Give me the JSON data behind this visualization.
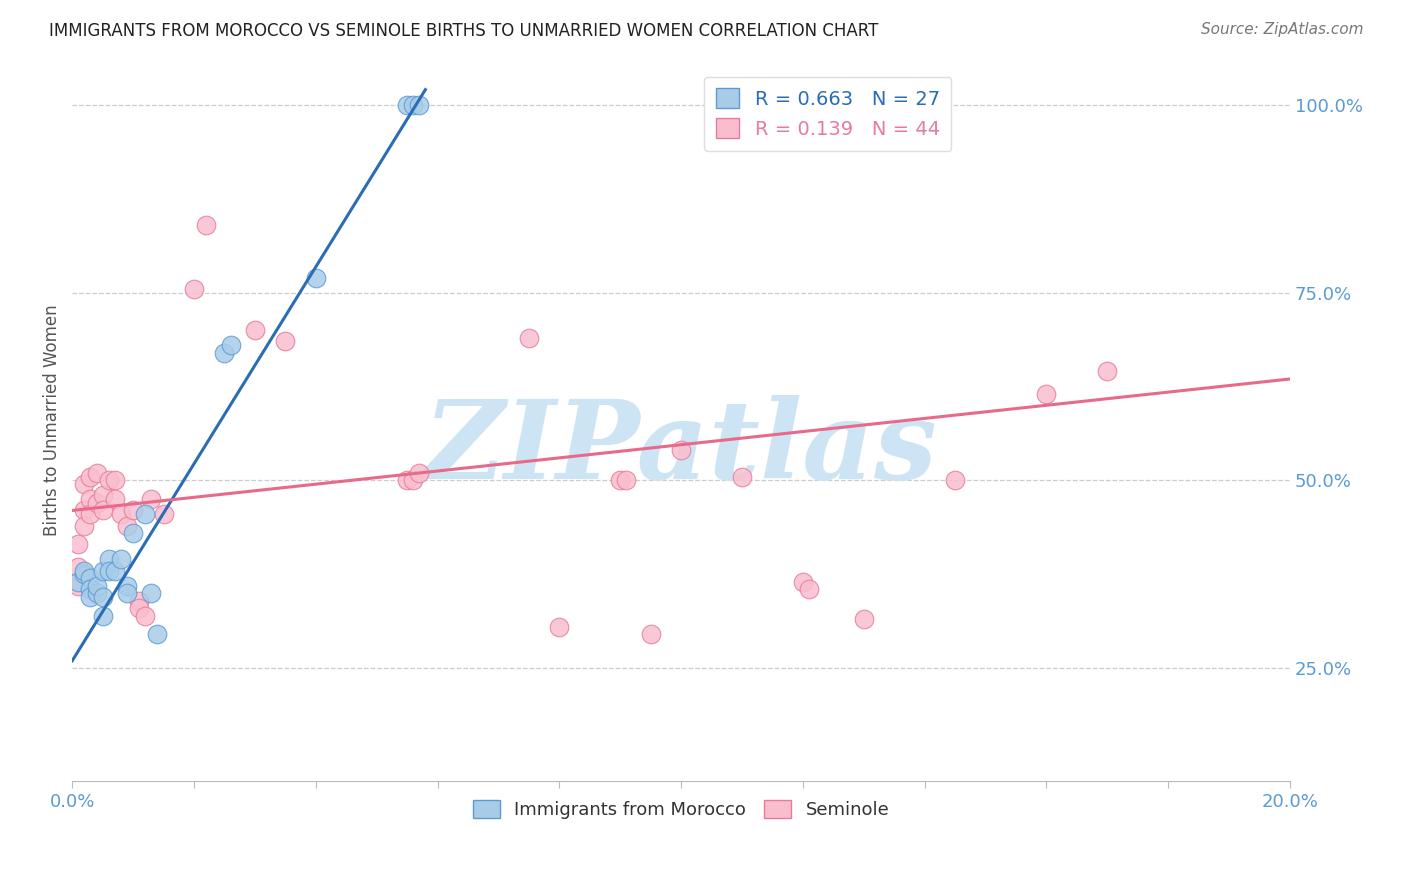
{
  "title": "IMMIGRANTS FROM MOROCCO VS SEMINOLE BIRTHS TO UNMARRIED WOMEN CORRELATION CHART",
  "source": "Source: ZipAtlas.com",
  "ylabel": "Births to Unmarried Women",
  "y_tick_labels": [
    "25.0%",
    "50.0%",
    "75.0%",
    "100.0%"
  ],
  "y_tick_values": [
    0.25,
    0.5,
    0.75,
    1.0
  ],
  "legend_entries": [
    {
      "label": "R = 0.663   N = 27",
      "color": "#7eb3e0"
    },
    {
      "label": "R = 0.139   N = 44",
      "color": "#f4a0b0"
    }
  ],
  "legend_bottom": [
    "Immigrants from Morocco",
    "Seminole"
  ],
  "blue_scatter": [
    [
      0.001,
      0.365
    ],
    [
      0.002,
      0.375
    ],
    [
      0.002,
      0.38
    ],
    [
      0.003,
      0.37
    ],
    [
      0.003,
      0.355
    ],
    [
      0.003,
      0.345
    ],
    [
      0.004,
      0.35
    ],
    [
      0.004,
      0.36
    ],
    [
      0.005,
      0.38
    ],
    [
      0.005,
      0.345
    ],
    [
      0.005,
      0.32
    ],
    [
      0.006,
      0.395
    ],
    [
      0.006,
      0.38
    ],
    [
      0.007,
      0.38
    ],
    [
      0.008,
      0.395
    ],
    [
      0.009,
      0.36
    ],
    [
      0.009,
      0.35
    ],
    [
      0.01,
      0.43
    ],
    [
      0.012,
      0.455
    ],
    [
      0.013,
      0.35
    ],
    [
      0.014,
      0.295
    ],
    [
      0.025,
      0.67
    ],
    [
      0.026,
      0.68
    ],
    [
      0.04,
      0.77
    ],
    [
      0.055,
      1.0
    ],
    [
      0.056,
      1.0
    ],
    [
      0.057,
      1.0
    ]
  ],
  "pink_scatter": [
    [
      0.001,
      0.415
    ],
    [
      0.001,
      0.385
    ],
    [
      0.001,
      0.36
    ],
    [
      0.002,
      0.495
    ],
    [
      0.002,
      0.46
    ],
    [
      0.002,
      0.44
    ],
    [
      0.003,
      0.505
    ],
    [
      0.003,
      0.475
    ],
    [
      0.003,
      0.455
    ],
    [
      0.004,
      0.51
    ],
    [
      0.004,
      0.47
    ],
    [
      0.005,
      0.48
    ],
    [
      0.005,
      0.46
    ],
    [
      0.006,
      0.5
    ],
    [
      0.007,
      0.5
    ],
    [
      0.007,
      0.475
    ],
    [
      0.008,
      0.455
    ],
    [
      0.009,
      0.44
    ],
    [
      0.01,
      0.46
    ],
    [
      0.011,
      0.34
    ],
    [
      0.011,
      0.33
    ],
    [
      0.012,
      0.32
    ],
    [
      0.013,
      0.475
    ],
    [
      0.015,
      0.455
    ],
    [
      0.02,
      0.755
    ],
    [
      0.022,
      0.84
    ],
    [
      0.03,
      0.7
    ],
    [
      0.035,
      0.685
    ],
    [
      0.055,
      0.5
    ],
    [
      0.056,
      0.5
    ],
    [
      0.057,
      0.51
    ],
    [
      0.075,
      0.69
    ],
    [
      0.09,
      0.5
    ],
    [
      0.091,
      0.5
    ],
    [
      0.1,
      0.54
    ],
    [
      0.11,
      0.505
    ],
    [
      0.12,
      0.365
    ],
    [
      0.121,
      0.355
    ],
    [
      0.13,
      0.315
    ],
    [
      0.145,
      0.5
    ],
    [
      0.16,
      0.615
    ],
    [
      0.17,
      0.645
    ],
    [
      0.095,
      0.295
    ],
    [
      0.08,
      0.305
    ]
  ],
  "blue_line": {
    "x": [
      0.0,
      0.058
    ],
    "y": [
      0.26,
      1.02
    ]
  },
  "pink_line": {
    "x": [
      0.0,
      0.2
    ],
    "y": [
      0.46,
      0.635
    ]
  },
  "xlim": [
    0.0,
    0.2
  ],
  "ylim": [
    0.1,
    1.06
  ],
  "x_ticks": [
    0.0,
    0.02,
    0.04,
    0.06,
    0.08,
    0.1,
    0.12,
    0.14,
    0.16,
    0.18,
    0.2
  ],
  "background_color": "#ffffff",
  "grid_color": "#cccccc",
  "blue_color": "#a8cce8",
  "pink_color": "#f9bece",
  "blue_edge_color": "#5b9bd5",
  "pink_edge_color": "#e87b9a",
  "blue_line_color": "#2b6db5",
  "pink_line_color": "#e86a8a",
  "title_color": "#222222",
  "axis_color": "#5b9bd5",
  "watermark": "ZIPatlas",
  "watermark_color": "#cde4f5"
}
